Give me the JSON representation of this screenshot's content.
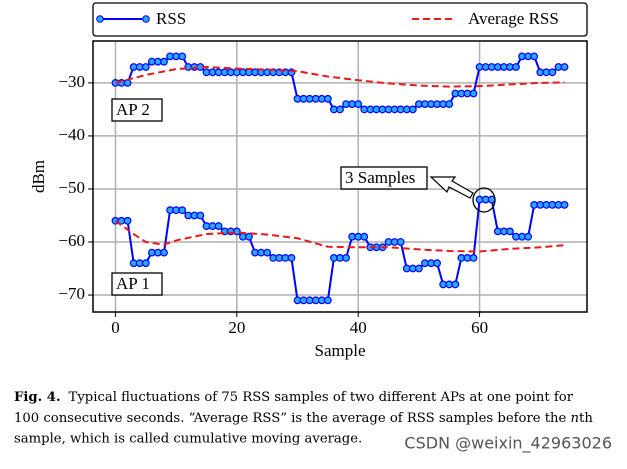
{
  "chart_data": {
    "type": "line",
    "x_label": "Sample",
    "y_label": "dBm",
    "xlim": [
      -3.7,
      77.7
    ],
    "ylim": [
      -73.2,
      -22.1
    ],
    "xticks": [
      0,
      20,
      40,
      60
    ],
    "yticks": [
      {
        "value": -30,
        "label": "−30"
      },
      {
        "value": -40,
        "label": "−40"
      },
      {
        "value": -50,
        "label": "−50"
      },
      {
        "value": -60,
        "label": "−60"
      },
      {
        "value": -70,
        "label": "−70"
      }
    ],
    "grid": true,
    "x": [
      0,
      1,
      2,
      3,
      4,
      5,
      6,
      7,
      8,
      9,
      10,
      11,
      12,
      13,
      14,
      15,
      16,
      17,
      18,
      19,
      20,
      21,
      22,
      23,
      24,
      25,
      26,
      27,
      28,
      29,
      30,
      31,
      32,
      33,
      34,
      35,
      36,
      37,
      38,
      39,
      40,
      41,
      42,
      43,
      44,
      45,
      46,
      47,
      48,
      49,
      50,
      51,
      52,
      53,
      54,
      55,
      56,
      57,
      58,
      59,
      60,
      61,
      62,
      63,
      64,
      65,
      66,
      67,
      68,
      69,
      70,
      71,
      72,
      73,
      74
    ],
    "series": [
      {
        "name": "RSS",
        "color": "#0000ff",
        "marker_color": "#2aa7ff",
        "values": [
          -30,
          -30,
          -30,
          -27,
          -27,
          -27,
          -26,
          -26,
          -26,
          -25,
          -25,
          -25,
          -27,
          -27,
          -27,
          -28,
          -28,
          -28,
          -28,
          -28,
          -28,
          -28,
          -28,
          -28,
          -28,
          -28,
          -28,
          -28,
          -28,
          -28,
          -33,
          -33,
          -33,
          -33,
          -33,
          -33,
          -35,
          -35,
          -34,
          -34,
          -34,
          -35,
          -35,
          -35,
          -35,
          -35,
          -35,
          -35,
          -35,
          -35,
          -34,
          -34,
          -34,
          -34,
          -34,
          -34,
          -32,
          -32,
          -32,
          -32,
          -27,
          -27,
          -27,
          -27,
          -27,
          -27,
          -27,
          -25,
          -25,
          -25,
          -28,
          -28,
          -28,
          -27,
          -27
        ]
      },
      {
        "color": "#0000ff",
        "marker_color": "#2aa7ff",
        "values": [
          -56,
          -56,
          -56,
          -64,
          -64,
          -64,
          -62,
          -62,
          -62,
          -54,
          -54,
          -54,
          -55,
          -55,
          -55,
          -57,
          -57,
          -57,
          -58,
          -58,
          -58,
          -59,
          -59,
          -62,
          -62,
          -62,
          -63,
          -63,
          -63,
          -63,
          -71,
          -71,
          -71,
          -71,
          -71,
          -71,
          -63,
          -63,
          -63,
          -59,
          -59,
          -59,
          -61,
          -61,
          -61,
          -60,
          -60,
          -60,
          -65,
          -65,
          -65,
          -64,
          -64,
          -64,
          -68,
          -68,
          -68,
          -63,
          -63,
          -63,
          -52,
          -52,
          -52,
          -58,
          -58,
          -58,
          -59,
          -59,
          -59,
          -53,
          -53,
          -53,
          -53,
          -53,
          -53
        ]
      },
      {
        "name": "Average RSS",
        "color": "#e8191c",
        "dashed": true,
        "x": [
          0,
          5,
          10,
          15,
          20,
          25,
          30,
          35,
          40,
          45,
          50,
          55,
          60,
          65,
          70,
          74
        ],
        "values": [
          -30,
          -28.5,
          -27.4,
          -27,
          -27.3,
          -27.5,
          -27.8,
          -28.8,
          -29.5,
          -30.1,
          -30.5,
          -30.7,
          -30.6,
          -30.3,
          -30,
          -29.9
        ]
      },
      {
        "color": "#e8191c",
        "dashed": true,
        "x": [
          0,
          3,
          5,
          8,
          10,
          15,
          20,
          25,
          30,
          35,
          40,
          45,
          50,
          55,
          60,
          65,
          70,
          74
        ],
        "values": [
          -56,
          -58.5,
          -60,
          -60.5,
          -59.7,
          -58.5,
          -58.2,
          -58.6,
          -59.3,
          -60.9,
          -61,
          -61,
          -61.4,
          -61.7,
          -61.8,
          -61.3,
          -61,
          -60.6
        ]
      }
    ],
    "annotations": [
      "AP 2",
      "AP 1",
      "3 Samples"
    ]
  },
  "caption": {
    "label": "Fig. 4.",
    "line0": "Typical fluctuations of 75 RSS samples of two different APs at one point for",
    "line1": [
      "100 consecutive seconds. “Average RSS” is the average of RSS samples before the ",
      "n",
      "th"
    ],
    "line2": "sample, which is called cumulative moving average."
  },
  "watermark": "CSDN @weixin_42963026"
}
